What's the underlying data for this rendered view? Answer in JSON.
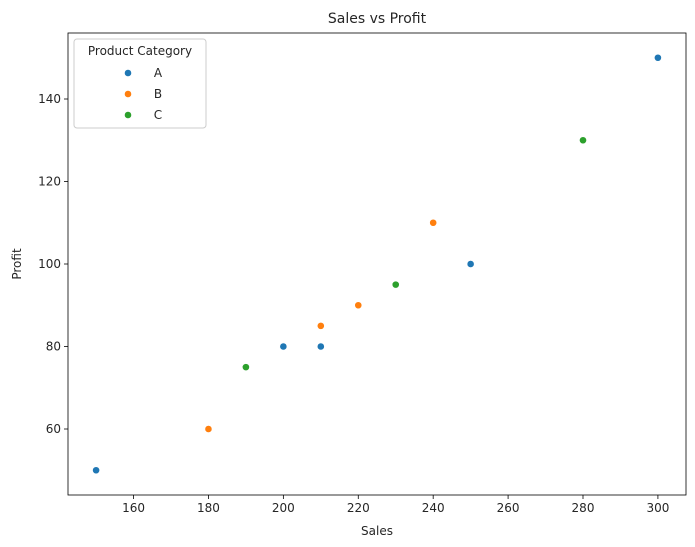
{
  "chart_data": {
    "type": "scatter",
    "title": "Sales vs Profit",
    "xlabel": "Sales",
    "ylabel": "Profit",
    "xlim": [
      142.5,
      307.5
    ],
    "ylim": [
      44,
      156
    ],
    "xticks": [
      160,
      180,
      200,
      220,
      240,
      260,
      280,
      300
    ],
    "yticks": [
      60,
      80,
      100,
      120,
      140
    ],
    "grid": false,
    "legend": {
      "title": "Product Category",
      "placement": "upper-left"
    },
    "series": [
      {
        "name": "A",
        "color": "#1f77b4",
        "points": [
          [
            150,
            50
          ],
          [
            200,
            80
          ],
          [
            210,
            80
          ],
          [
            250,
            100
          ],
          [
            300,
            150
          ]
        ]
      },
      {
        "name": "B",
        "color": "#ff7f0e",
        "points": [
          [
            180,
            60
          ],
          [
            210,
            85
          ],
          [
            220,
            90
          ],
          [
            240,
            110
          ]
        ]
      },
      {
        "name": "C",
        "color": "#2ca02c",
        "points": [
          [
            190,
            75
          ],
          [
            230,
            95
          ],
          [
            280,
            130
          ]
        ]
      }
    ]
  }
}
